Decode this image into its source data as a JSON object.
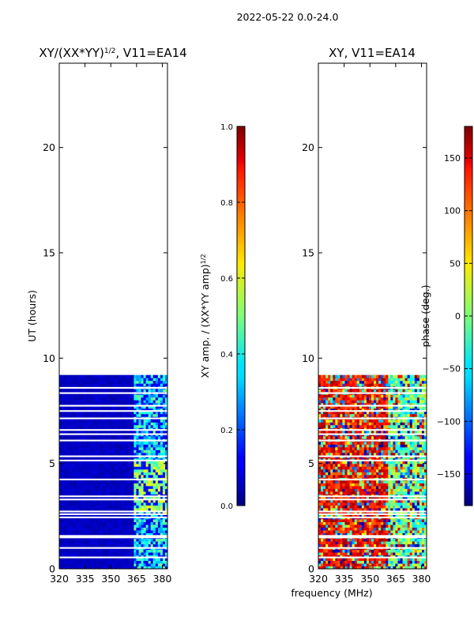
{
  "figure": {
    "suptitle": "2022-05-22 0.0-24.0",
    "xlabel": "frequency (MHz)"
  },
  "chart_data": [
    {
      "type": "heatmap",
      "title_prefix": "XY/(XX*YY)",
      "title_exp": "1/2",
      "title_suffix": ", V11=EA14",
      "xlabel": "",
      "ylabel": "UT (hours)",
      "x_ticks": [
        320,
        335,
        350,
        365,
        380
      ],
      "y_ticks": [
        0,
        5,
        10,
        15,
        20
      ],
      "xlim": [
        320,
        383
      ],
      "ylim": [
        0,
        24
      ],
      "data_extent_hours": [
        0,
        9.2
      ],
      "colorbar": {
        "label": "XY amp. / (XX*YY amp)",
        "label_exp": "1/2",
        "ticks": [
          "0.0",
          "0.2",
          "0.4",
          "0.6",
          "0.8",
          "1.0"
        ],
        "range": [
          0,
          1
        ]
      }
    },
    {
      "type": "heatmap",
      "title": "XY, V11=EA14",
      "xlabel": "",
      "ylabel": "",
      "x_ticks": [
        320,
        335,
        350,
        365,
        380
      ],
      "y_ticks": [
        0,
        5,
        10,
        15,
        20
      ],
      "xlim": [
        320,
        383
      ],
      "ylim": [
        0,
        24
      ],
      "data_extent_hours": [
        0,
        9.2
      ],
      "colorbar": {
        "label": "phase (deg.)",
        "ticks": [
          "150",
          "100",
          "50",
          "0",
          "−50",
          "−100",
          "−150"
        ],
        "range": [
          -180,
          180
        ]
      }
    }
  ]
}
